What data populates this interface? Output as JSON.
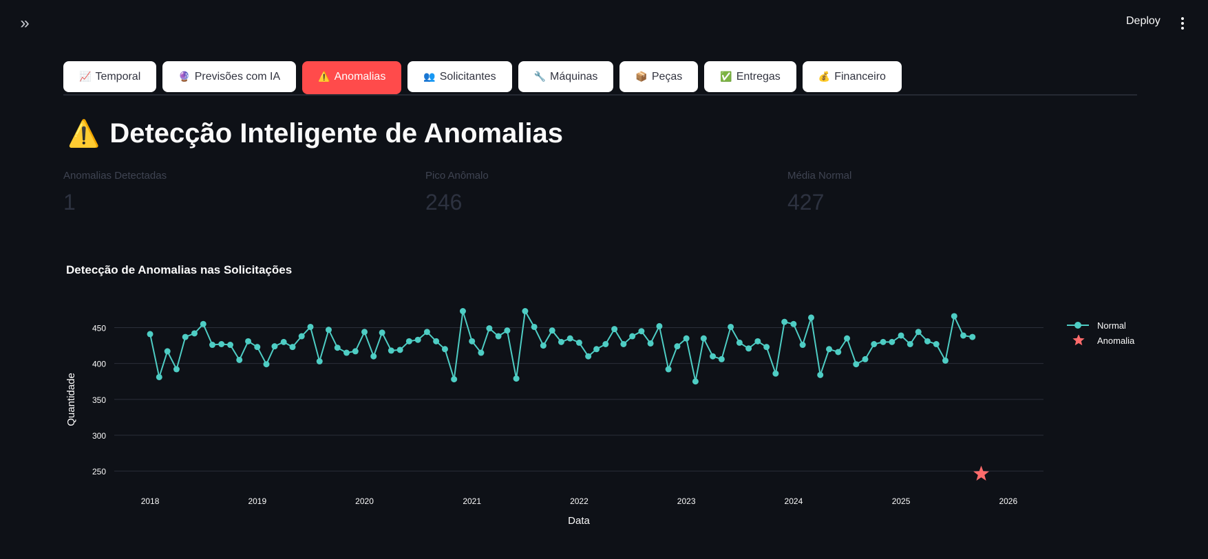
{
  "header": {
    "deploy_label": "Deploy"
  },
  "tabs": [
    {
      "icon": "📈",
      "label": "Temporal",
      "active": false
    },
    {
      "icon": "🔮",
      "label": "Previsões com IA",
      "active": false
    },
    {
      "icon": "⚠️",
      "label": "Anomalias",
      "active": true
    },
    {
      "icon": "👥",
      "label": "Solicitantes",
      "active": false
    },
    {
      "icon": "🔧",
      "label": "Máquinas",
      "active": false
    },
    {
      "icon": "📦",
      "label": "Peças",
      "active": false
    },
    {
      "icon": "✅",
      "label": "Entregas",
      "active": false
    },
    {
      "icon": "💰",
      "label": "Financeiro",
      "active": false
    }
  ],
  "page": {
    "icon": "⚠️",
    "title": "Detecção Inteligente de Anomalias"
  },
  "metrics": [
    {
      "label": "Anomalias Detectadas",
      "value": "1"
    },
    {
      "label": "Pico Anômalo",
      "value": "246"
    },
    {
      "label": "Média Normal",
      "value": "427"
    }
  ],
  "chart_title": "Detecção de Anomalias nas Solicitações",
  "colors": {
    "normal": "#4ecdc4",
    "anomaly": "#ff6b6b",
    "accent": "#ff4b4b"
  },
  "chart_data": {
    "type": "line",
    "title": "Detecção de Anomalias nas Solicitações",
    "xlabel": "Data",
    "ylabel": "Quantidade",
    "ylim": [
      230,
      485
    ],
    "xlim": [
      "2017-09-01",
      "2026-05-01"
    ],
    "x_ticks": [
      "2018",
      "2019",
      "2020",
      "2021",
      "2022",
      "2023",
      "2024",
      "2025",
      "2026"
    ],
    "y_ticks": [
      250,
      300,
      350,
      400,
      450
    ],
    "grid": true,
    "legend": "right",
    "series": [
      {
        "name": "Normal",
        "marker": "circle",
        "start": "2018-01",
        "values": [
          441,
          381,
          417,
          392,
          437,
          442,
          455,
          426,
          427,
          426,
          405,
          431,
          423,
          399,
          424,
          430,
          423,
          438,
          451,
          403,
          447,
          422,
          415,
          417,
          444,
          410,
          443,
          418,
          419,
          431,
          433,
          444,
          431,
          420,
          378,
          473,
          431,
          415,
          449,
          438,
          446,
          379,
          473,
          451,
          425,
          446,
          430,
          435,
          429,
          410,
          420,
          427,
          448,
          427,
          438,
          445,
          428,
          452,
          392,
          424,
          435,
          375,
          435,
          410,
          406,
          451,
          429,
          421,
          431,
          423,
          386,
          458,
          455,
          426,
          464,
          384,
          420,
          416,
          435,
          399,
          406,
          427,
          430,
          430,
          439,
          427,
          444,
          431,
          427,
          404,
          466,
          439,
          437
        ]
      },
      {
        "name": "Anomalia",
        "marker": "star",
        "x": [
          "2025-10"
        ],
        "values": [
          246
        ]
      }
    ]
  }
}
